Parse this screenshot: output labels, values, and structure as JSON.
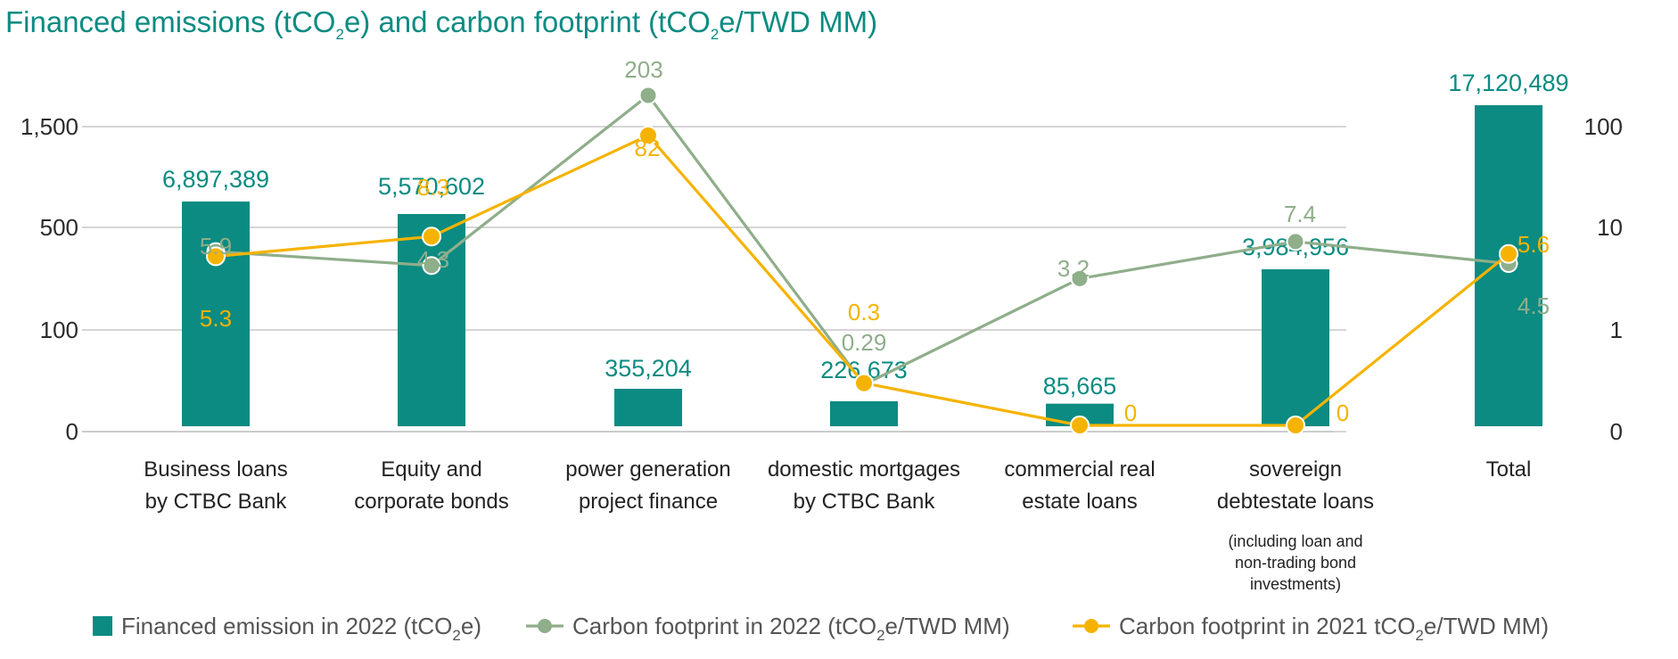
{
  "chart_data": {
    "type": "bar",
    "title": {
      "pre": "Financed emissions (tCO",
      "sub": "2",
      "mid": "e) and carbon footprint (tCO",
      "sub2": "2",
      "post": "e/TWD MM)"
    },
    "categories": [
      {
        "lines": [
          "Business loans",
          "by CTBC Bank"
        ]
      },
      {
        "lines": [
          "Equity and",
          "corporate bonds"
        ]
      },
      {
        "lines": [
          "power generation",
          "project finance"
        ]
      },
      {
        "lines": [
          "domestic mortgages",
          "by CTBC Bank"
        ]
      },
      {
        "lines": [
          "commercial real",
          "estate loans"
        ]
      },
      {
        "lines": [
          "sovereign",
          "debtestate loans"
        ],
        "note": [
          "(including loan and",
          "non-trading bond",
          "investments)"
        ]
      },
      {
        "lines": [
          "Total"
        ]
      }
    ],
    "left_axis": {
      "ticks": [
        "0",
        "100",
        "500",
        "1,500"
      ]
    },
    "right_axis": {
      "ticks": [
        "0",
        "1",
        "10",
        "100"
      ]
    },
    "series": [
      {
        "name": "Financed emission in 2022",
        "kind": "bar",
        "color": "#0b8b82",
        "values": [
          6897389,
          5570602,
          355204,
          226673,
          85665,
          3984956,
          17120489
        ],
        "labels": [
          "6,897,389",
          "5,570,602",
          "355,204",
          "226,673",
          "85,665",
          "3,984,956",
          "17,120,489"
        ]
      },
      {
        "name": "Carbon footprint in 2022",
        "kind": "line",
        "color": "#8fae8a",
        "values": [
          5.9,
          4.3,
          203,
          0.29,
          3.2,
          7.4,
          4.5
        ],
        "labels": [
          "5.9",
          "4.3",
          "203",
          "0.29",
          "3.2",
          "7.4",
          "4.5"
        ]
      },
      {
        "name": "Carbon footprint in 2021",
        "kind": "line",
        "color": "#f5b300",
        "values": [
          5.3,
          8.3,
          82,
          0.3,
          0,
          0,
          5.6
        ],
        "labels": [
          "5.3",
          "8.3",
          "82",
          "0.3",
          "0",
          "0",
          "5.6"
        ]
      }
    ],
    "legend": [
      {
        "pre": "Financed emission in 2022 (tCO",
        "sub": "2",
        "post": "e)"
      },
      {
        "pre": "Carbon footprint in 2022 (tCO",
        "sub": "2",
        "post": "e/TWD MM)"
      },
      {
        "pre": "Carbon footprint in 2021 tCO",
        "sub": "2",
        "post": "e/TWD MM)"
      }
    ]
  }
}
